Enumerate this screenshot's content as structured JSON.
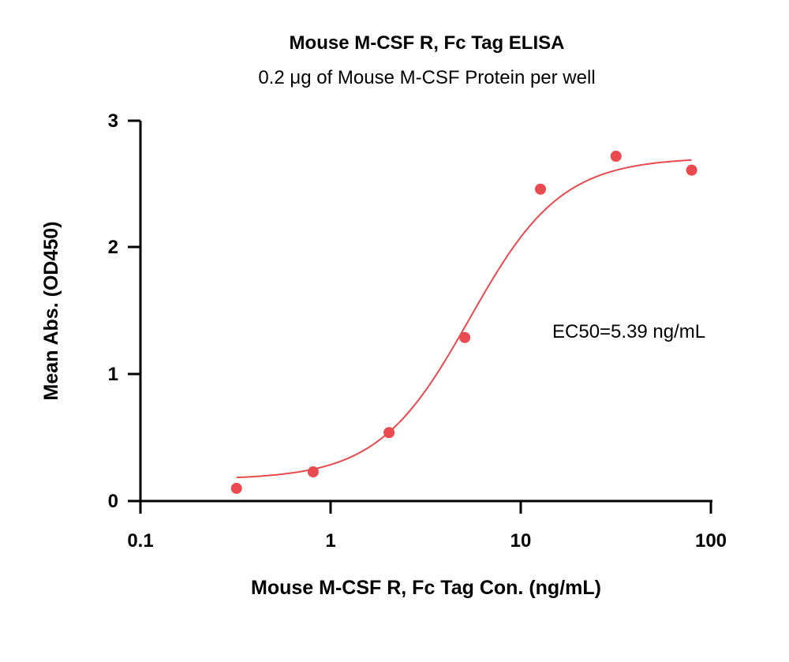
{
  "chart_data": {
    "type": "scatter",
    "title": "Mouse M-CSF R, Fc Tag ELISA",
    "subtitle": "0.2 μg of Mouse M-CSF Protein per well",
    "xlabel": "Mouse M-CSF R, Fc Tag Con. (ng/mL)",
    "ylabel": "Mean Abs. (OD450)",
    "xscale": "log",
    "xlim": [
      0.1,
      100
    ],
    "ylim": [
      0,
      3
    ],
    "xticks": [
      "0.1",
      "1",
      "10",
      "100"
    ],
    "yticks": [
      "0",
      "1",
      "2",
      "3"
    ],
    "grid": false,
    "annotation": "EC50=5.39 ng/mL",
    "color": "#e84a4f",
    "series": [
      {
        "x": [
          0.32,
          0.81,
          2.03,
          5.08,
          12.7,
          31.7,
          79.2
        ],
        "y": [
          0.1,
          0.23,
          0.54,
          1.29,
          2.46,
          2.72,
          2.61
        ]
      }
    ],
    "fit": {
      "bottom": 0.17,
      "top": 2.71,
      "ec50": 5.39,
      "hill": 1.8,
      "x_range": [
        0.32,
        79.2
      ]
    }
  }
}
